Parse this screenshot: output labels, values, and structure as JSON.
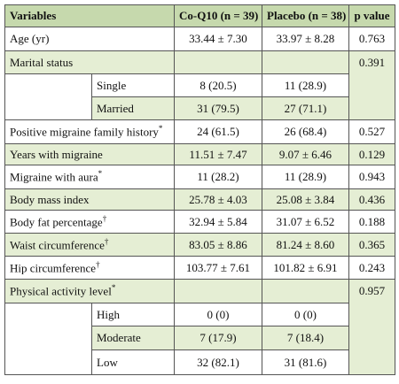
{
  "header": {
    "variables": "Variables",
    "coq10": "Co-Q10 (n = 39)",
    "placebo": "Placebo (n = 38)",
    "p": "p value"
  },
  "rows": [
    {
      "label": "Age (yr)",
      "coq10": "33.44 ± 7.30",
      "placebo": "33.97 ± 8.28",
      "p": "0.763"
    },
    {
      "label": "Marital status",
      "p": "0.391"
    },
    {
      "label": "Single",
      "coq10": "8 (20.5)",
      "placebo": "11 (28.9)"
    },
    {
      "label": "Married",
      "coq10": "31 (79.5)",
      "placebo": "27 (71.1)"
    },
    {
      "label": "Positive migraine family history",
      "note": "*",
      "coq10": "24 (61.5)",
      "placebo": "26 (68.4)",
      "p": "0.527"
    },
    {
      "label": "Years with migraine",
      "coq10": "11.51 ± 7.47",
      "placebo": "9.07 ± 6.46",
      "p": "0.129"
    },
    {
      "label": "Migraine with aura",
      "note": "*",
      "coq10": "11 (28.2)",
      "placebo": "11 (28.9)",
      "p": "0.943"
    },
    {
      "label": "Body mass index",
      "coq10": "25.78 ± 4.03",
      "placebo": "25.08 ± 3.84",
      "p": "0.436"
    },
    {
      "label": "Body fat percentage",
      "note": "†",
      "coq10": "32.94 ± 5.84",
      "placebo": "31.07 ± 6.52",
      "p": "0.188"
    },
    {
      "label": "Waist circumference",
      "note": "†",
      "coq10": "83.05 ± 8.86",
      "placebo": "81.24 ± 8.60",
      "p": "0.365"
    },
    {
      "label": "Hip circumference",
      "note": "†",
      "coq10": "103.77 ± 7.61",
      "placebo": "101.82 ± 6.91",
      "p": "0.243"
    },
    {
      "label": "Physical activity level",
      "note": "*",
      "p": "0.957"
    },
    {
      "label": "High",
      "coq10": "0 (0)",
      "placebo": "0 (0)"
    },
    {
      "label": "Moderate",
      "coq10": "7 (17.9)",
      "placebo": "7 (18.4)"
    },
    {
      "label": "Low",
      "coq10": "32 (82.1)",
      "placebo": "31 (81.6)"
    }
  ]
}
